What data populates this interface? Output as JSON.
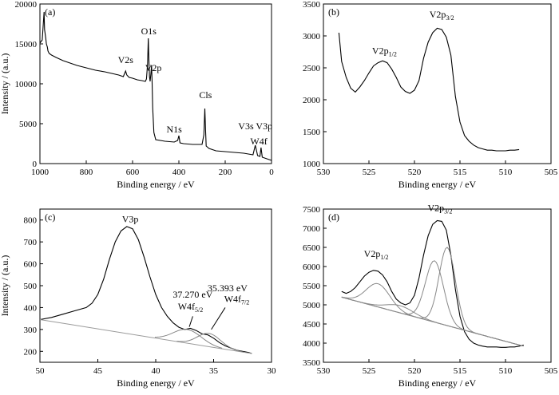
{
  "figure": {
    "panels": [
      "a",
      "b",
      "c",
      "d"
    ]
  },
  "chart_data": [
    {
      "id": "a",
      "type": "line",
      "tag": "(a)",
      "xlabel": "Binding energy / eV",
      "ylabel": "Intensity / (a.u.)",
      "xlim": [
        1000,
        0
      ],
      "ylim": [
        0,
        20000
      ],
      "xticks": [
        1000,
        800,
        600,
        400,
        200,
        0
      ],
      "yticks": [
        0,
        5000,
        10000,
        15000,
        20000
      ],
      "line_color": "#000000",
      "series": [
        {
          "x": [
            1000,
            990,
            985,
            982,
            980,
            975,
            972,
            968,
            965,
            960,
            950,
            930,
            900,
            870,
            840,
            800,
            760,
            720,
            690,
            660,
            640,
            630,
            625,
            615,
            600,
            580,
            560,
            545,
            540,
            535,
            532,
            530,
            527,
            524,
            521,
            518,
            516,
            513,
            508,
            500,
            460,
            420,
            405,
            400,
            395,
            380,
            340,
            300,
            292,
            288,
            285,
            282,
            278,
            270,
            240,
            200,
            160,
            120,
            100,
            80,
            70,
            60,
            50,
            45,
            40,
            30,
            20,
            10,
            0
          ],
          "y": [
            15100,
            15500,
            17800,
            19000,
            16800,
            15700,
            15000,
            14600,
            14100,
            13800,
            13600,
            13300,
            12900,
            12600,
            12300,
            12000,
            11700,
            11500,
            11300,
            11100,
            10900,
            11600,
            11100,
            10800,
            10700,
            10500,
            10400,
            10300,
            10600,
            12500,
            15700,
            13500,
            10900,
            10300,
            11200,
            12300,
            10500,
            7000,
            3900,
            3000,
            2800,
            2700,
            2900,
            3500,
            2600,
            2500,
            2400,
            2400,
            3600,
            6900,
            4200,
            2200,
            2100,
            1900,
            1600,
            1500,
            1400,
            1300,
            1200,
            1100,
            2300,
            1000,
            900,
            2000,
            800,
            700,
            600,
            500,
            400
          ]
        }
      ],
      "annotations": [
        {
          "text": "O1s",
          "x": 530,
          "y": 16200
        },
        {
          "text": "V2s",
          "x": 630,
          "y": 12600
        },
        {
          "text": "V2p",
          "x": 510,
          "y": 11600
        },
        {
          "text": "Cls",
          "x": 285,
          "y": 8200
        },
        {
          "text": "N1s",
          "x": 420,
          "y": 3900
        },
        {
          "text": "V3s V3p",
          "x": 70,
          "y": 4300
        },
        {
          "text": "W4f",
          "x": 55,
          "y": 2400
        }
      ]
    },
    {
      "id": "b",
      "type": "line",
      "tag": "(b)",
      "xlabel": "Binding energy / eV",
      "ylabel": "",
      "xlim": [
        530,
        505
      ],
      "ylim": [
        1000,
        3500
      ],
      "xticks": [
        530,
        525,
        520,
        515,
        510,
        505
      ],
      "yticks": [
        1000,
        1500,
        2000,
        2500,
        3000,
        3500
      ],
      "line_color": "#000000",
      "series": [
        {
          "x": [
            528.3,
            528.0,
            527.5,
            527.0,
            526.5,
            526.0,
            525.5,
            525.0,
            524.5,
            524.0,
            523.5,
            523.0,
            522.5,
            522.0,
            521.5,
            521.0,
            520.5,
            520.0,
            519.5,
            519.0,
            518.5,
            518.0,
            517.5,
            517.0,
            516.5,
            516.0,
            515.5,
            515.0,
            514.5,
            514.0,
            513.5,
            513.0,
            512.5,
            512.0,
            511.5,
            511.0,
            510.5,
            510.0,
            509.5,
            509.0,
            508.5
          ],
          "y": [
            3050,
            2600,
            2350,
            2180,
            2120,
            2200,
            2300,
            2420,
            2530,
            2580,
            2610,
            2580,
            2480,
            2350,
            2200,
            2130,
            2100,
            2150,
            2300,
            2650,
            2900,
            3050,
            3120,
            3100,
            2980,
            2700,
            2050,
            1650,
            1440,
            1350,
            1290,
            1250,
            1230,
            1210,
            1210,
            1200,
            1200,
            1200,
            1210,
            1210,
            1220
          ]
        }
      ],
      "annotations": [
        {
          "text": "V2p",
          "sub": "1/2",
          "x": 523.3,
          "y": 2720
        },
        {
          "text": "V2p",
          "sub": "3/2",
          "x": 517.0,
          "y": 3290
        }
      ]
    },
    {
      "id": "c",
      "type": "line",
      "tag": "(c)",
      "xlabel": "Binding energy / eV",
      "ylabel": "Intensity / (a.u.)",
      "xlim": [
        50,
        30
      ],
      "ylim": [
        150,
        850
      ],
      "xticks": [
        50,
        45,
        40,
        35,
        30
      ],
      "yticks": [
        200,
        300,
        400,
        500,
        600,
        700,
        800
      ],
      "line_color": "#000000",
      "series": [
        {
          "x": [
            50.0,
            49.0,
            48.0,
            47.0,
            46.0,
            45.5,
            45.0,
            44.5,
            44.0,
            43.5,
            43.0,
            42.5,
            42.0,
            41.5,
            41.0,
            40.5,
            40.0,
            39.5,
            39.0,
            38.5,
            38.0,
            37.5,
            37.0,
            36.5,
            36.0,
            35.5,
            35.0,
            34.5,
            34.0,
            33.5,
            33.0,
            32.5,
            32.0,
            31.7
          ],
          "y": [
            345,
            355,
            370,
            385,
            400,
            420,
            460,
            530,
            620,
            700,
            750,
            770,
            760,
            710,
            630,
            540,
            460,
            400,
            360,
            330,
            310,
            300,
            305,
            295,
            280,
            275,
            260,
            240,
            225,
            215,
            205,
            200,
            195,
            190
          ]
        }
      ],
      "annotations": [
        {
          "text": "V3p",
          "x": 42.2,
          "y": 790
        },
        {
          "text": "37.270 eV",
          "x": 36.8,
          "y": 445
        },
        {
          "text": "W4f",
          "sub": "5/2",
          "x": 37.0,
          "y": 390
        },
        {
          "text": "35.393 eV",
          "x": 33.8,
          "y": 475
        },
        {
          "text": "W4f",
          "sub": "7/2",
          "x": 33.0,
          "y": 425
        }
      ]
    },
    {
      "id": "d",
      "type": "line",
      "tag": "(d)",
      "xlabel": "Binding energy / eV",
      "ylabel": "",
      "xlim": [
        530,
        505
      ],
      "ylim": [
        3500,
        7500
      ],
      "xticks": [
        530,
        525,
        520,
        515,
        510,
        505
      ],
      "yticks": [
        3500,
        4000,
        4500,
        5000,
        5500,
        6000,
        6500,
        7000,
        7500
      ],
      "line_color": "#000000",
      "fit_color": "#888888",
      "series": [
        {
          "x": [
            528.0,
            527.5,
            527.0,
            526.5,
            526.0,
            525.5,
            525.0,
            524.5,
            524.0,
            523.5,
            523.0,
            522.5,
            522.0,
            521.5,
            521.0,
            520.5,
            520.0,
            519.5,
            519.0,
            518.5,
            518.0,
            517.5,
            517.0,
            516.5,
            516.0,
            515.5,
            515.0,
            514.5,
            514.0,
            513.5,
            513.0,
            512.5,
            512.0,
            511.5,
            511.0,
            510.5,
            510.0,
            509.5,
            509.0,
            508.5,
            508.0
          ],
          "y": [
            5350,
            5300,
            5350,
            5450,
            5600,
            5750,
            5850,
            5900,
            5880,
            5780,
            5600,
            5350,
            5150,
            5050,
            5000,
            5050,
            5250,
            5700,
            6300,
            6800,
            7100,
            7200,
            7180,
            6950,
            6300,
            5400,
            4700,
            4300,
            4100,
            4000,
            3950,
            3920,
            3900,
            3900,
            3900,
            3890,
            3890,
            3900,
            3900,
            3920,
            3950
          ]
        }
      ],
      "annotations": [
        {
          "text": "V2p",
          "sub": "1/2",
          "x": 524.2,
          "y": 6250
        },
        {
          "text": "V2p",
          "sub": "3/2",
          "x": 517.2,
          "y": 7450
        }
      ]
    }
  ]
}
